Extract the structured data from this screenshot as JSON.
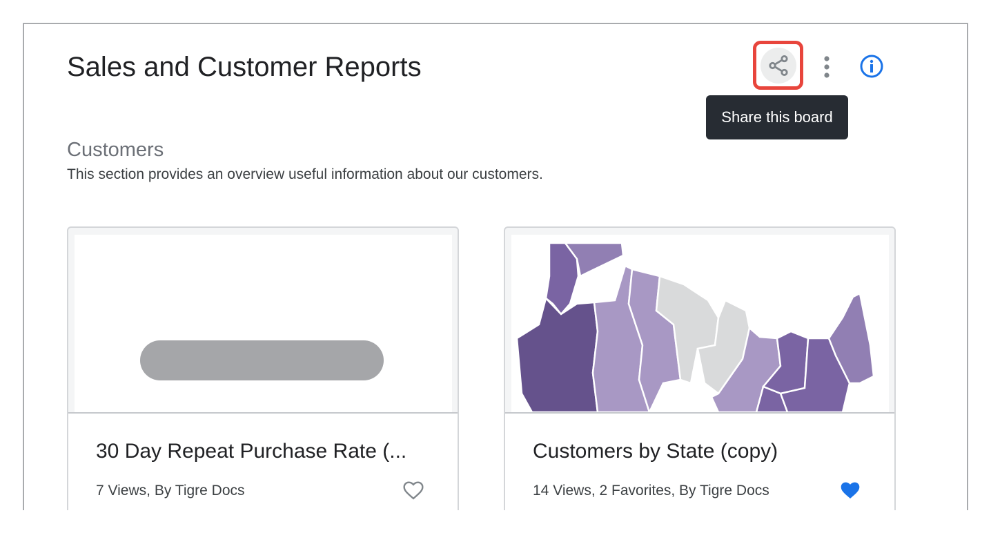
{
  "header": {
    "title": "Sales and Customer Reports",
    "share_tooltip": "Share this board",
    "icons": [
      "share-icon",
      "more-vert-icon",
      "info-icon"
    ]
  },
  "section": {
    "title": "Customers",
    "description": "This section provides an overview useful information about our customers."
  },
  "cards": [
    {
      "title": "30 Day Repeat Purchase Rate (...",
      "meta": "7 Views, By Tigre Docs",
      "favorited": false
    },
    {
      "title": "Customers by State (copy)",
      "meta": "14 Views, 2 Favorites, By Tigre Docs",
      "favorited": true
    }
  ],
  "colors": {
    "highlight": "#e8453c",
    "accent": "#1a73e8",
    "tooltip": "#272c33",
    "map": [
      "#65528c",
      "#7a64a3",
      "#917fb3",
      "#a898c4",
      "#d9dadb"
    ]
  }
}
